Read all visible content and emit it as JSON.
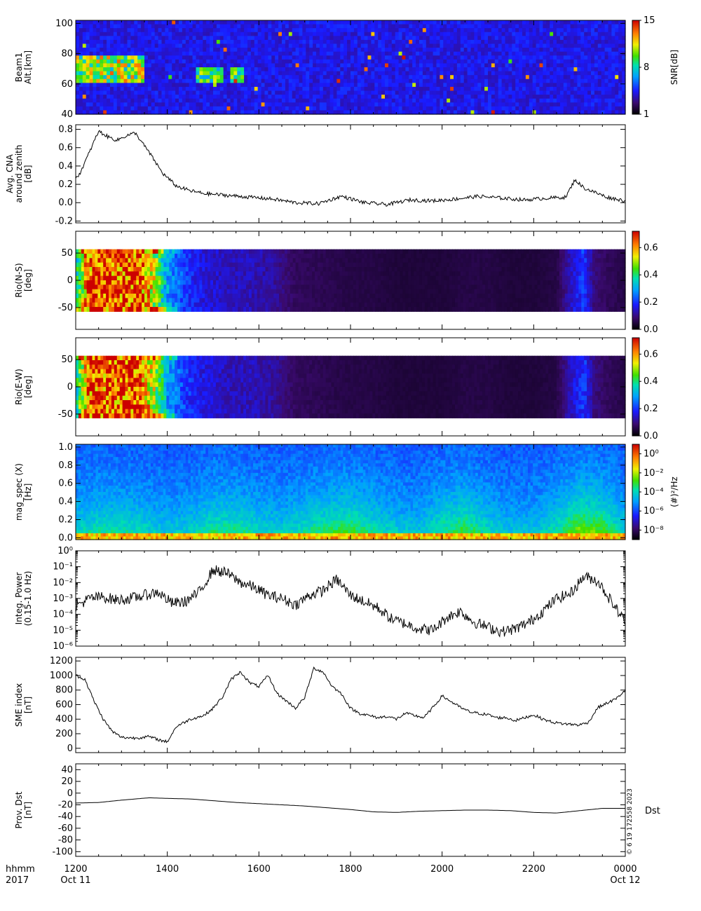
{
  "chart_data": [
    {
      "type": "heatmap",
      "panel": "Beam1",
      "ylabel": [
        "Beam1",
        "Alt.[km]"
      ],
      "y_ticks": [
        "40",
        "60",
        "80",
        "100"
      ],
      "ylim": [
        40,
        102
      ],
      "colorbar": {
        "label": "SNR[dB]",
        "ticks": [
          "1",
          "8",
          "15"
        ],
        "range": [
          1,
          15
        ]
      },
      "features": [
        {
          "t_start_h": 12.0,
          "t_end_h": 13.5,
          "alt_km": [
            60,
            78
          ],
          "level_dB": 12
        },
        {
          "t_start_h": 14.65,
          "t_end_h": 15.2,
          "alt_km": [
            60,
            72
          ],
          "level_dB": 10
        },
        {
          "t_start_h": 15.4,
          "t_end_h": 15.7,
          "alt_km": [
            60,
            72
          ],
          "level_dB": 10
        }
      ]
    },
    {
      "type": "line",
      "panel": "CNA",
      "ylabel": [
        "Avg. CNA",
        "around zenith",
        "[dB]"
      ],
      "y_ticks": [
        "-0.2",
        "0.0",
        "0.2",
        "0.4",
        "0.6",
        "0.8"
      ],
      "ylim": [
        -0.22,
        0.85
      ],
      "x_hours": [
        12.0,
        12.1,
        12.3,
        12.5,
        12.7,
        12.9,
        13.1,
        13.3,
        13.6,
        13.9,
        14.2,
        14.5,
        14.8,
        15.3,
        15.8,
        16.3,
        16.8,
        17.3,
        17.8,
        18.3,
        18.8,
        19.3,
        19.8,
        20.3,
        20.8,
        21.3,
        21.8,
        22.3,
        22.7,
        22.9,
        23.1,
        23.3,
        23.6,
        24.0
      ],
      "y": [
        0.25,
        0.33,
        0.55,
        0.78,
        0.72,
        0.68,
        0.73,
        0.76,
        0.55,
        0.32,
        0.18,
        0.13,
        0.1,
        0.08,
        0.06,
        0.04,
        0.0,
        -0.01,
        0.07,
        0.0,
        -0.02,
        0.03,
        0.02,
        0.04,
        0.07,
        0.05,
        0.03,
        0.05,
        0.06,
        0.25,
        0.16,
        0.12,
        0.06,
        0.02
      ]
    },
    {
      "type": "heatmap",
      "panel": "Rio N-S",
      "ylabel": [
        "Rio(N-S)",
        "[deg]"
      ],
      "y_ticks": [
        "-50",
        "0",
        "50"
      ],
      "ylim": [
        -90,
        90
      ],
      "data_extent_deg": [
        -57,
        57
      ],
      "colorbar": {
        "ticks": [
          "0.0",
          "0.2",
          "0.4",
          "0.6"
        ],
        "range": [
          0,
          0.72
        ]
      },
      "x_hours": [
        12.0,
        12.1,
        12.3,
        12.6,
        13.0,
        13.4,
        13.7,
        14.0,
        14.4,
        14.8,
        15.3,
        15.8,
        16.3,
        16.8,
        17.4,
        18.0,
        18.5,
        19.0,
        19.5,
        20.0,
        20.5,
        21.0,
        21.5,
        22.0,
        22.5,
        22.9,
        23.1,
        23.3,
        23.6,
        24.0
      ],
      "intensity": [
        0.35,
        0.5,
        0.72,
        0.72,
        0.72,
        0.72,
        0.55,
        0.3,
        0.2,
        0.15,
        0.12,
        0.12,
        0.1,
        0.05,
        0.04,
        0.03,
        0.03,
        0.02,
        0.02,
        0.02,
        0.03,
        0.03,
        0.02,
        0.02,
        0.03,
        0.15,
        0.2,
        0.08,
        0.05,
        0.03
      ]
    },
    {
      "type": "heatmap",
      "panel": "Rio E-W",
      "ylabel": [
        "Rio(E-W)",
        "[deg]"
      ],
      "y_ticks": [
        "-50",
        "0",
        "50"
      ],
      "ylim": [
        -90,
        90
      ],
      "data_extent_deg": [
        -57,
        57
      ],
      "colorbar": {
        "ticks": [
          "0.0",
          "0.2",
          "0.4",
          "0.6"
        ],
        "range": [
          0,
          0.72
        ]
      },
      "x_hours": [
        12.0,
        12.1,
        12.3,
        12.6,
        13.0,
        13.4,
        13.7,
        14.0,
        14.4,
        14.8,
        15.3,
        15.8,
        16.3,
        16.8,
        17.4,
        18.0,
        18.5,
        19.0,
        19.5,
        20.0,
        20.5,
        21.0,
        21.5,
        22.0,
        22.5,
        22.9,
        23.1,
        23.3,
        23.6,
        24.0
      ],
      "intensity": [
        0.35,
        0.5,
        0.72,
        0.72,
        0.72,
        0.72,
        0.55,
        0.3,
        0.2,
        0.15,
        0.12,
        0.12,
        0.1,
        0.05,
        0.04,
        0.03,
        0.03,
        0.02,
        0.02,
        0.02,
        0.03,
        0.03,
        0.02,
        0.02,
        0.03,
        0.15,
        0.2,
        0.08,
        0.05,
        0.03
      ]
    },
    {
      "type": "heatmap",
      "panel": "mag spec",
      "ylabel": [
        "mag_spec (X)",
        "[Hz]"
      ],
      "y_ticks": [
        "0.0",
        "0.2",
        "0.4",
        "0.6",
        "0.8",
        "1.0"
      ],
      "ylim": [
        -0.02,
        1.03
      ],
      "colorbar": {
        "label": "(#)²/Hz",
        "ticks": [
          "10⁰",
          "10⁻²",
          "10⁻⁴",
          "10⁻⁶",
          "10⁻⁸"
        ],
        "log_range": [
          -9,
          1
        ]
      },
      "activity_hours": [
        12.0,
        12.5,
        13.0,
        13.5,
        14.0,
        14.5,
        15.0,
        15.5,
        16.0,
        16.5,
        17.0,
        17.5,
        18.0,
        18.5,
        19.0,
        19.5,
        20.0,
        20.5,
        21.0,
        21.5,
        22.0,
        22.5,
        23.0,
        23.5,
        24.0
      ],
      "activity_level": [
        0.45,
        0.5,
        0.5,
        0.45,
        0.35,
        0.4,
        0.55,
        0.55,
        0.45,
        0.4,
        0.5,
        0.6,
        0.65,
        0.5,
        0.4,
        0.35,
        0.55,
        0.65,
        0.45,
        0.35,
        0.35,
        0.5,
        0.8,
        0.7,
        0.4
      ]
    },
    {
      "type": "line",
      "panel": "Integ. Power",
      "ylabel": [
        "Integ. Power",
        "(0.15-1.0 Hz)"
      ],
      "y_log": true,
      "y_ticks": [
        "10⁻⁶",
        "10⁻⁵",
        "10⁻⁴",
        "10⁻³",
        "10⁻²",
        "10⁻¹",
        "10⁰"
      ],
      "ylim_log": [
        -6,
        0
      ],
      "x_hours": [
        12.0,
        12.3,
        12.6,
        12.9,
        13.2,
        13.5,
        13.8,
        14.1,
        14.4,
        14.7,
        15.0,
        15.3,
        15.6,
        15.9,
        16.2,
        16.5,
        16.8,
        17.1,
        17.4,
        17.7,
        18.0,
        18.3,
        18.6,
        18.9,
        19.2,
        19.5,
        19.8,
        20.1,
        20.4,
        20.7,
        21.0,
        21.3,
        21.6,
        21.9,
        22.2,
        22.5,
        22.8,
        23.1,
        23.4,
        23.7,
        24.0
      ],
      "log10_y": [
        -3.5,
        -3.0,
        -2.9,
        -3.1,
        -3.0,
        -2.8,
        -2.6,
        -3.3,
        -3.2,
        -2.6,
        -1.2,
        -1.4,
        -2.0,
        -2.3,
        -2.8,
        -3.0,
        -3.4,
        -2.8,
        -2.5,
        -1.8,
        -2.8,
        -3.2,
        -3.6,
        -4.3,
        -4.6,
        -4.9,
        -5.0,
        -4.2,
        -3.8,
        -4.5,
        -4.8,
        -5.1,
        -4.9,
        -4.5,
        -3.8,
        -3.0,
        -2.7,
        -1.6,
        -1.9,
        -3.2,
        -4.5
      ]
    },
    {
      "type": "line",
      "panel": "SME index",
      "ylabel": [
        "SME index",
        "[nT]"
      ],
      "y_ticks": [
        "0",
        "200",
        "400",
        "600",
        "800",
        "1000",
        "1200"
      ],
      "ylim": [
        -60,
        1250
      ],
      "x_hours": [
        12.0,
        12.2,
        12.4,
        12.6,
        12.8,
        13.0,
        13.3,
        13.6,
        13.9,
        14.0,
        14.2,
        14.5,
        14.8,
        15.0,
        15.2,
        15.4,
        15.6,
        15.8,
        16.0,
        16.2,
        16.4,
        16.6,
        16.8,
        17.0,
        17.2,
        17.4,
        17.6,
        17.8,
        18.0,
        18.2,
        18.4,
        18.6,
        18.8,
        19.0,
        19.2,
        19.4,
        19.6,
        19.8,
        20.0,
        20.2,
        20.4,
        20.6,
        20.8,
        21.0,
        21.2,
        21.4,
        21.6,
        21.8,
        22.0,
        22.2,
        22.4,
        22.6,
        22.8,
        23.0,
        23.2,
        23.4,
        23.6,
        23.8,
        24.0
      ],
      "y": [
        1000,
        950,
        650,
        400,
        230,
        150,
        140,
        160,
        100,
        90,
        300,
        400,
        450,
        550,
        700,
        950,
        1050,
        900,
        850,
        1000,
        750,
        650,
        550,
        700,
        1100,
        1050,
        850,
        750,
        550,
        480,
        450,
        420,
        440,
        400,
        480,
        450,
        420,
        560,
        720,
        640,
        560,
        500,
        480,
        460,
        420,
        420,
        380,
        420,
        460,
        400,
        360,
        340,
        330,
        320,
        360,
        560,
        620,
        680,
        800
      ]
    },
    {
      "type": "line",
      "panel": "Prov. Dst",
      "ylabel": [
        "Prov. Dst",
        "[nT]"
      ],
      "series_label": "Dst",
      "y_ticks": [
        "-100",
        "-80",
        "-60",
        "-40",
        "-20",
        "0",
        "20",
        "40"
      ],
      "ylim": [
        -108,
        50
      ],
      "x_hours": [
        12.0,
        12.5,
        13.0,
        13.6,
        14.0,
        14.5,
        15.0,
        15.5,
        16.0,
        16.5,
        17.0,
        17.5,
        18.0,
        18.5,
        19.0,
        19.5,
        20.0,
        20.5,
        21.0,
        21.5,
        22.0,
        22.5,
        23.0,
        23.5,
        24.0
      ],
      "y": [
        -17,
        -16,
        -12,
        -8,
        -9,
        -10,
        -13,
        -16,
        -18,
        -20,
        -22,
        -25,
        -28,
        -32,
        -33,
        -31,
        -30,
        -29,
        -29,
        -30,
        -33,
        -34,
        -30,
        -26,
        -26
      ]
    }
  ],
  "x_axis": {
    "tick_labels": [
      "1200",
      "1400",
      "1600",
      "1800",
      "2000",
      "2200",
      "0000"
    ],
    "tick_hours": [
      12,
      14,
      16,
      18,
      20,
      22,
      24
    ],
    "range_hours": [
      12,
      24
    ],
    "format_label": "hhmm",
    "year": "2017",
    "start_date": "Oct 11",
    "end_date": "Oct 12"
  },
  "stamp": "© 6 19 172558 2023"
}
